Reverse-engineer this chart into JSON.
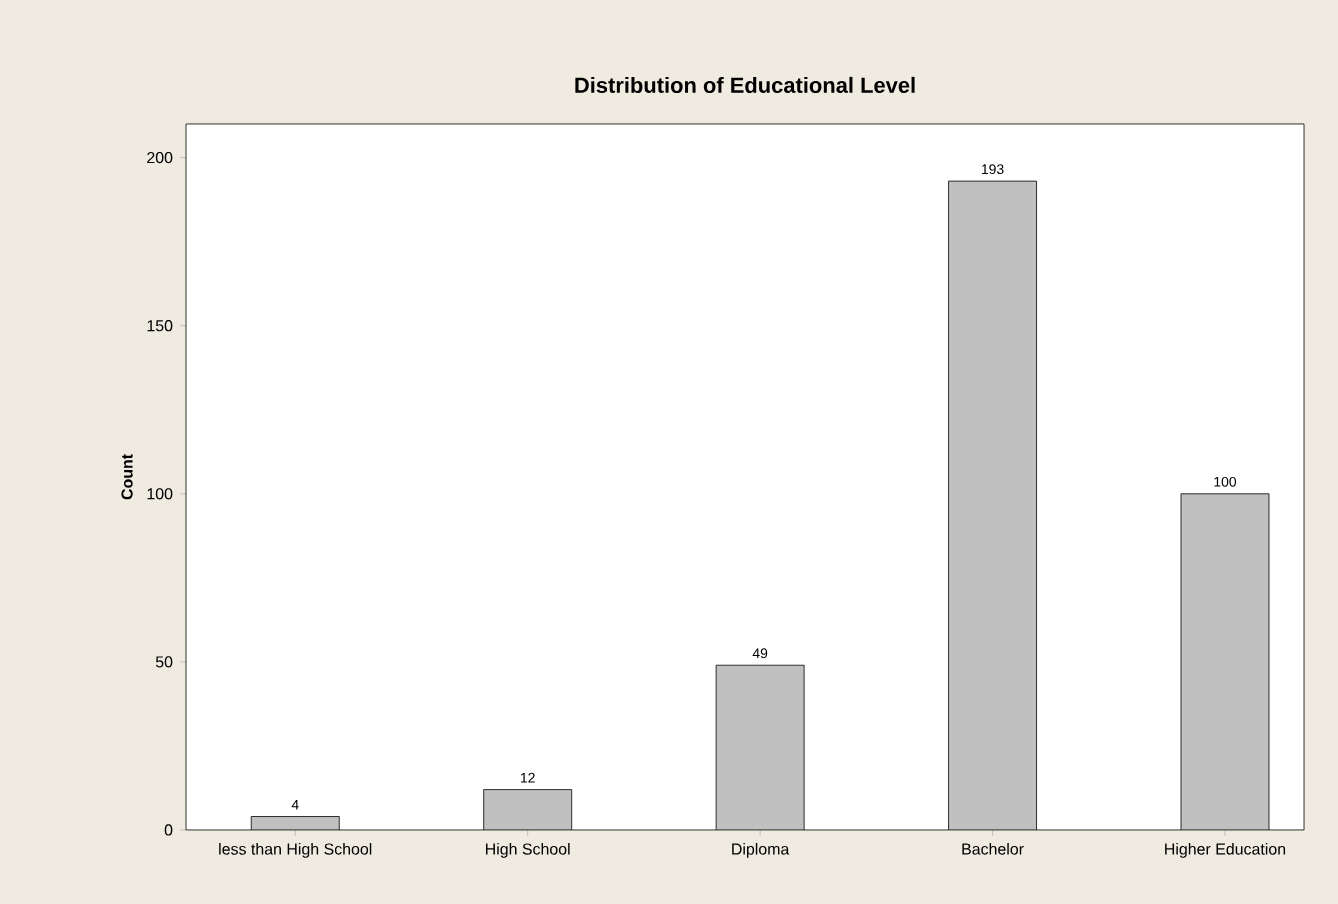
{
  "chart_data": {
    "type": "bar",
    "title": "Distribution of Educational Level",
    "ylabel": "Count",
    "categories": [
      "less than High School",
      "High School",
      "Diploma",
      "Bachelor",
      "Higher Education"
    ],
    "values": [
      4,
      12,
      49,
      193,
      100
    ],
    "color": "#c0c0c0",
    "data_labels": true,
    "ylim": [
      0,
      210
    ],
    "yticks": [
      0,
      50,
      100,
      150,
      200
    ],
    "grid": false
  }
}
